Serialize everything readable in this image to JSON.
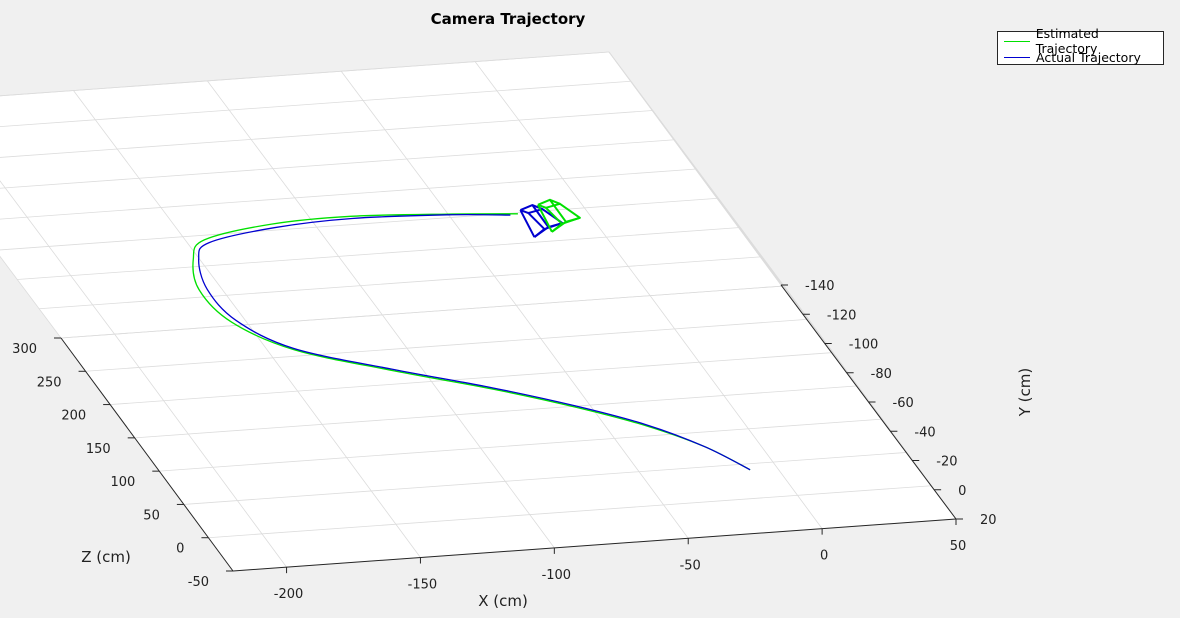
{
  "chart_data": {
    "type": "line-3d",
    "title": "Camera Trajectory",
    "xlabel": "X (cm)",
    "ylabel": "Y (cm)",
    "zlabel": "Z (cm)",
    "xlim": [
      -220,
      50
    ],
    "ylim": [
      -140,
      20
    ],
    "zlim": [
      -50,
      300
    ],
    "y_direction": "reverse",
    "x_ticks": [
      -200,
      -150,
      -100,
      -50,
      0,
      50
    ],
    "y_ticks": [
      -140,
      -120,
      -100,
      -80,
      -60,
      -40,
      -20,
      0,
      20
    ],
    "z_ticks": [
      -50,
      0,
      50,
      100,
      150,
      200,
      250,
      300
    ],
    "grid": true,
    "legend_position": "top-right",
    "series": [
      {
        "name": "Estimated Trajectory",
        "color": "#00e000",
        "points": [
          [
            -10,
            -2,
            -7
          ],
          [
            -20,
            -10,
            13
          ],
          [
            -35,
            -16,
            35
          ],
          [
            -55,
            -20,
            60
          ],
          [
            -80,
            -24,
            86
          ],
          [
            -110,
            -29,
            111
          ],
          [
            -140,
            -36,
            136
          ],
          [
            -155,
            -46,
            160
          ],
          [
            -158,
            -58,
            183
          ],
          [
            -152,
            -70,
            201
          ],
          [
            -143,
            -77,
            212
          ],
          [
            -115,
            -80,
            221
          ],
          [
            -85,
            -80,
            224
          ],
          [
            -50,
            -76,
            226
          ],
          [
            -25,
            -72,
            228
          ]
        ]
      },
      {
        "name": "Actual Trajectory",
        "color": "#0000d0",
        "points": [
          [
            -10,
            -2,
            -7
          ],
          [
            -20,
            -10,
            13
          ],
          [
            -35,
            -17,
            35
          ],
          [
            -55,
            -21,
            60
          ],
          [
            -80,
            -25,
            86
          ],
          [
            -110,
            -30,
            111
          ],
          [
            -140,
            -37,
            136
          ],
          [
            -153,
            -47,
            160
          ],
          [
            -155,
            -58,
            183
          ],
          [
            -150,
            -70,
            201
          ],
          [
            -142,
            -75,
            212
          ],
          [
            -115,
            -78,
            220
          ],
          [
            -85,
            -79,
            223
          ],
          [
            -50,
            -76,
            225
          ],
          [
            -28,
            -72,
            227
          ]
        ]
      }
    ]
  },
  "legend": {
    "items": [
      "Estimated Trajectory",
      "Actual Trajectory"
    ],
    "colors": [
      "#00e000",
      "#0000d0"
    ]
  }
}
